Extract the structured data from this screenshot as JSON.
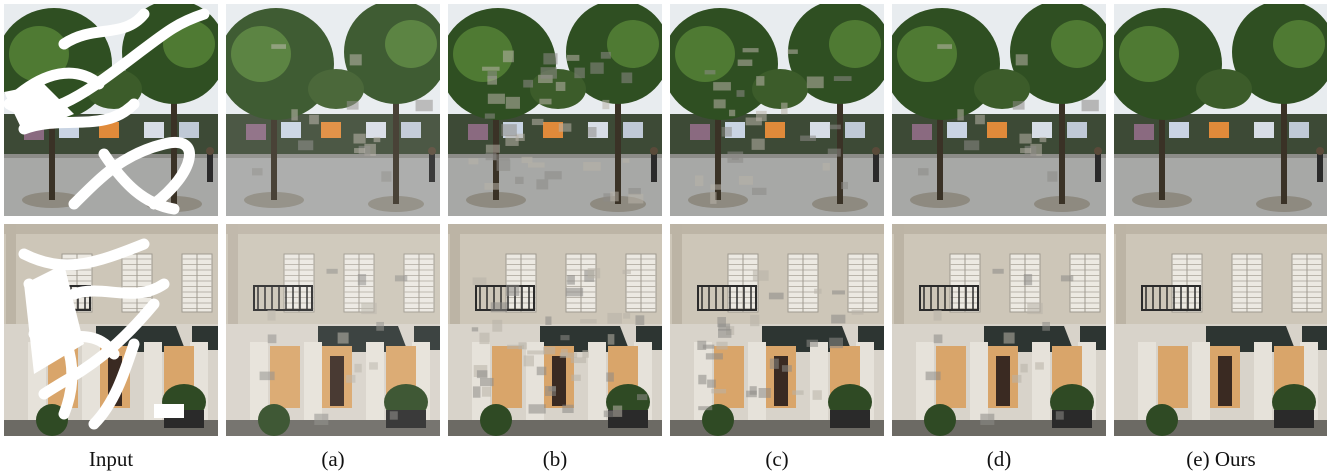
{
  "figure": {
    "columns": [
      {
        "id": "input",
        "caption": "Input",
        "kind": "masked"
      },
      {
        "id": "a",
        "caption": "(a)",
        "kind": "blurry"
      },
      {
        "id": "b",
        "caption": "(b)",
        "kind": "artifacts"
      },
      {
        "id": "c",
        "caption": "(c)",
        "kind": "mild"
      },
      {
        "id": "d",
        "caption": "(d)",
        "kind": "good"
      },
      {
        "id": "e",
        "caption": "(e) Ours",
        "kind": "clean"
      }
    ],
    "rows": [
      {
        "id": "street",
        "scene": "street-trees"
      },
      {
        "id": "facade",
        "scene": "building-facade"
      }
    ],
    "colors": {
      "sky": "#e8ecef",
      "foliage_dark": "#2f4f22",
      "foliage_light": "#4f7a33",
      "pavement": "#a7a8a6",
      "curb": "#8c8c88",
      "wall": "#cdc6b8",
      "shutter": "#ece9e2",
      "awning": "#2d3532",
      "shop_light": "#d9a56a",
      "mask": "#ffffff"
    }
  }
}
